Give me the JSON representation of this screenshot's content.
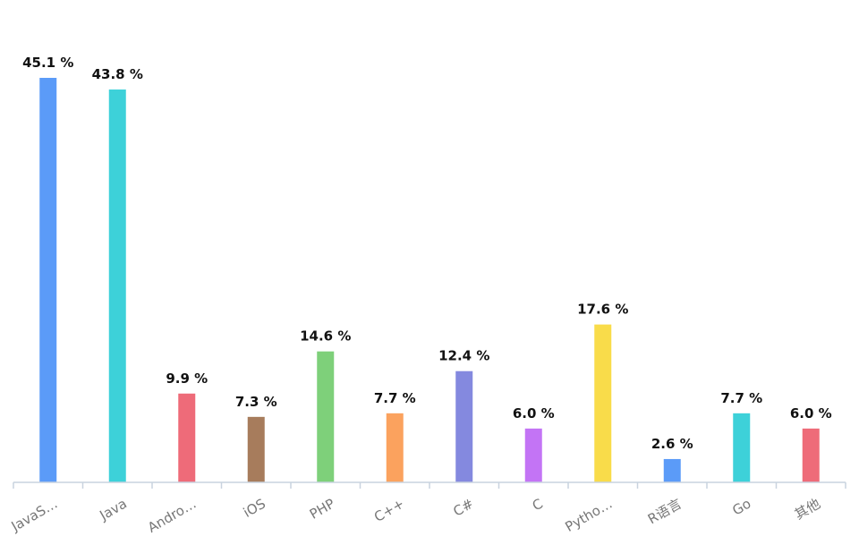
{
  "chart_data": {
    "type": "bar",
    "categories": [
      "JavaS…",
      "Java",
      "Andro…",
      "iOS",
      "PHP",
      "C++",
      "C#",
      "C",
      "Pytho…",
      "R语言",
      "Go",
      "其他"
    ],
    "values": [
      45.1,
      43.8,
      9.9,
      7.3,
      14.6,
      7.7,
      12.4,
      6.0,
      17.6,
      2.6,
      7.7,
      6.0
    ],
    "value_labels": [
      "45.1 %",
      "43.8 %",
      "9.9 %",
      "7.3 %",
      "14.6 %",
      "7.7 %",
      "12.4 %",
      "6.0 %",
      "17.6 %",
      "2.6 %",
      "7.7 %",
      "6.0 %"
    ],
    "colors": [
      "#5b9bf8",
      "#3dd1d9",
      "#ee6b79",
      "#a77c5c",
      "#7ed07a",
      "#fba25e",
      "#8489df",
      "#c374f5",
      "#f9dc4a",
      "#5b9bf8",
      "#3dd1d9",
      "#ee6b79"
    ],
    "ylim": [
      0,
      45.1
    ],
    "grid": false,
    "legend": "none",
    "xlabel": "",
    "ylabel": ""
  }
}
